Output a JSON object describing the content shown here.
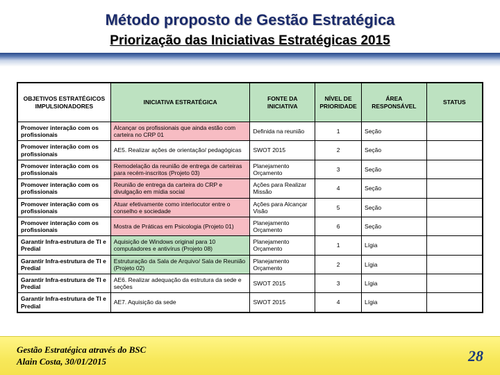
{
  "title": "Método proposto de Gestão Estratégica",
  "title_color": "#1a2a6a",
  "subtitle": "Priorização das Iniciativas Estratégicas 2015",
  "subtitle_color": "#000000",
  "page_number": "28",
  "footer_line1": "Gestão Estratégica através do BSC",
  "footer_line2": "Alain Costa, 30/01/2015",
  "table": {
    "columns": [
      {
        "label": "OBJETIVOS ESTRATÉGICOS IMPULSIONADORES",
        "width": "20%",
        "header_bg": "#ffffff"
      },
      {
        "label": "INICIATIVA ESTRATÉGICA",
        "width": "30%",
        "header_bg": "#bde2c1"
      },
      {
        "label": "FONTE DA INICIATIVA",
        "width": "14%",
        "header_bg": "#bde2c1"
      },
      {
        "label": "NÍVEL DE PRIORIDADE",
        "width": "10%",
        "header_bg": "#bde2c1"
      },
      {
        "label": "ÁREA RESPONSÁVEL",
        "width": "14%",
        "header_bg": "#bde2c1"
      },
      {
        "label": "STATUS",
        "width": "12%",
        "header_bg": "#bde2c1"
      }
    ],
    "rows": [
      {
        "c0": "Promover interação com os profissionais",
        "c1": "Alcançar os profissionais que ainda estão com carteira no CRP 01",
        "c2": "Definida na reunião",
        "c3": "1",
        "c4": "Seção",
        "c5": "",
        "bg_c1": "#f7bcc3"
      },
      {
        "c0": "Promover interação com os profissionais",
        "c1": "AE5. Realizar ações de orientação/ pedagógicas",
        "c2": "SWOT 2015",
        "c3": "2",
        "c4": "Seção",
        "c5": "",
        "bg_c1": "#ffffff"
      },
      {
        "c0": "Promover interação com os profissionais",
        "c1": "Remodelação da reunião de entrega de carteiras para recém-inscritos (Projeto 03)",
        "c2": "Planejamento Orçamento",
        "c3": "3",
        "c4": "Seção",
        "c5": "",
        "bg_c1": "#f7bcc3"
      },
      {
        "c0": "Promover interação com os profissionais",
        "c1": "Reunião de entrega da carteira do CRP e divulgação em mídia social",
        "c2": "Ações para Realizar Missão",
        "c3": "4",
        "c4": "Seção",
        "c5": "",
        "bg_c1": "#f7bcc3"
      },
      {
        "c0": "Promover interação com os profissionais",
        "c1": "Atuar efetivamente como interlocutor entre o conselho e sociedade",
        "c2": "Ações para Alcançar Visão",
        "c3": "5",
        "c4": "Seção",
        "c5": "",
        "bg_c1": "#f7bcc3"
      },
      {
        "c0": "Promover interação com os profissionais",
        "c1": "Mostra de Práticas em Psicologia (Projeto 01)",
        "c2": "Planejamento Orçamento",
        "c3": "6",
        "c4": "Seção",
        "c5": "",
        "bg_c1": "#f7bcc3"
      },
      {
        "c0": "Garantir Infra-estrutura de TI e Predial",
        "c1": "Aquisição de Windows original para 10 computadores e antivírus (Projeto 08)",
        "c2": "Planejamento Orçamento",
        "c3": "1",
        "c4": "Lígia",
        "c5": "",
        "bg_c1": "#bde2c1"
      },
      {
        "c0": "Garantir Infra-estrutura de TI e Predial",
        "c1": "Estruturação da Sala de Arquivo/ Sala de Reunião (Projeto 02)",
        "c2": "Planejamento Orçamento",
        "c3": "2",
        "c4": "Lígia",
        "c5": "",
        "bg_c1": "#bde2c1"
      },
      {
        "c0": "Garantir Infra-estrutura de TI e Predial",
        "c1": "AE6. Realizar adequação da estrutura da sede e seções",
        "c2": "SWOT 2015",
        "c3": "3",
        "c4": "Lígia",
        "c5": "",
        "bg_c1": "#ffffff"
      },
      {
        "c0": "Garantir Infra-estrutura de TI e Predial",
        "c1": "AE7. Aquisição da sede",
        "c2": "SWOT 2015",
        "c3": "4",
        "c4": "Lígia",
        "c5": "",
        "bg_c1": "#ffffff"
      }
    ]
  }
}
